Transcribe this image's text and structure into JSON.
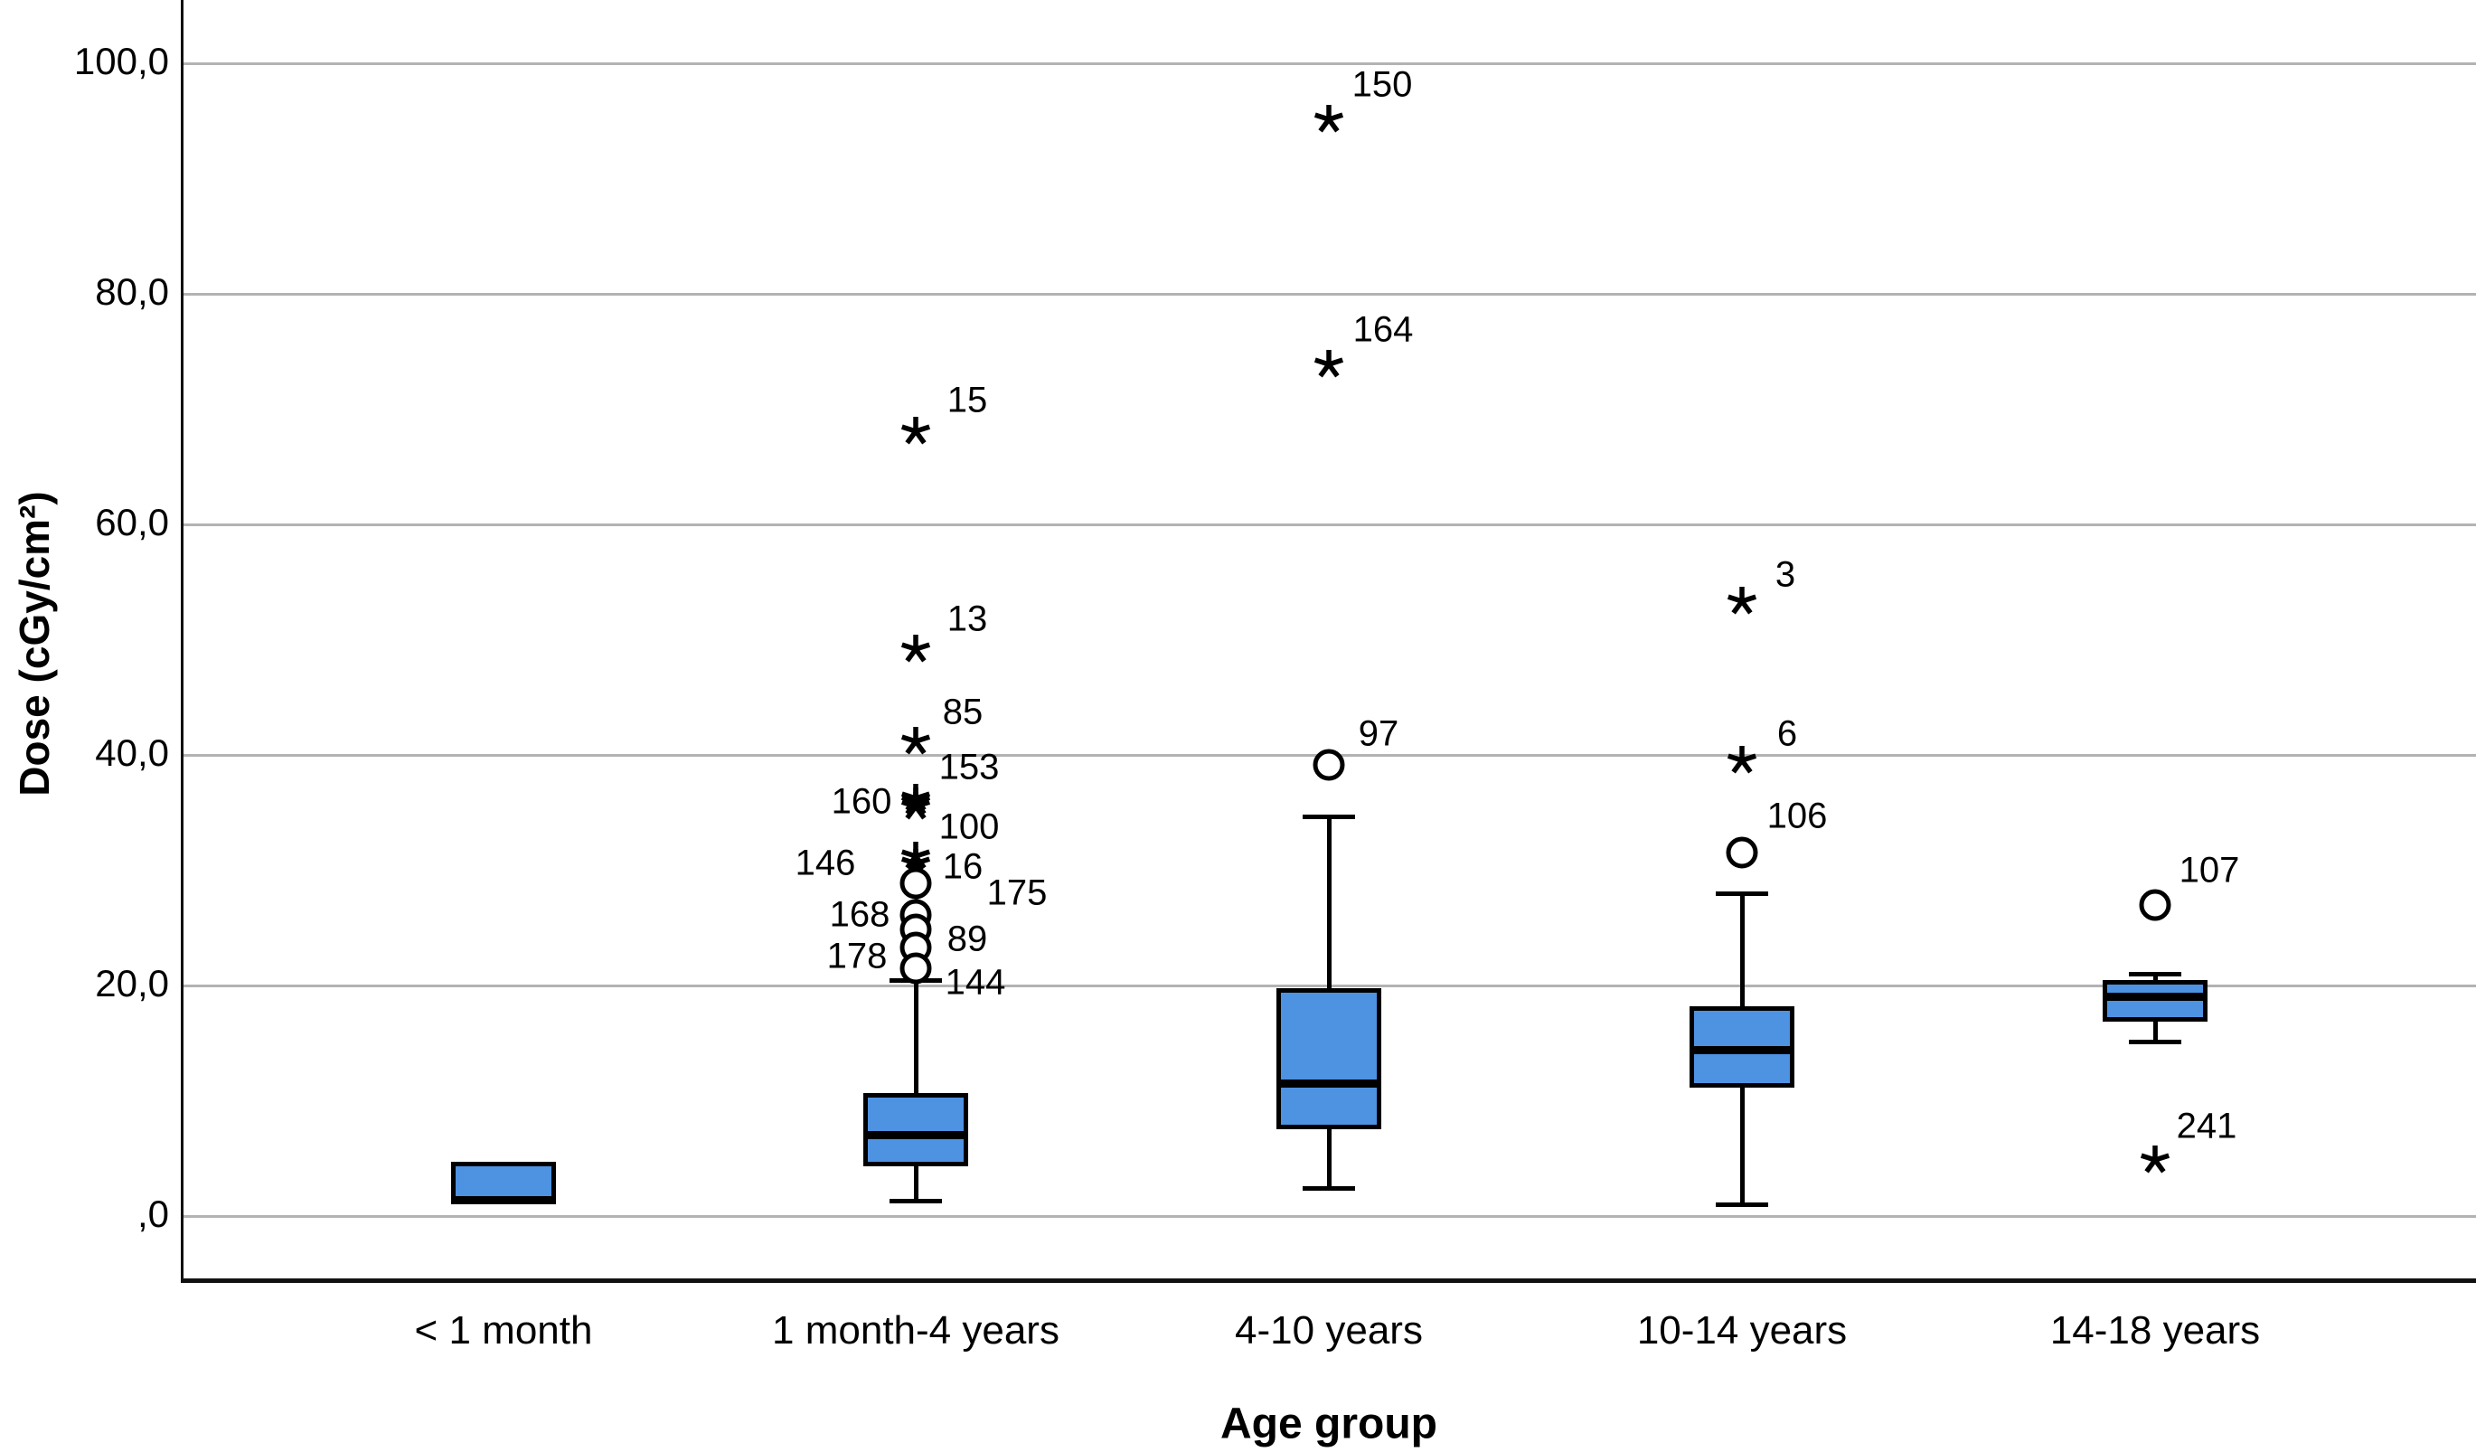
{
  "chart_data": {
    "type": "boxplot",
    "title": "",
    "ylabel": "Dose (cGy/cm²)",
    "xlabel": "Age group",
    "ylim": [
      -5.5,
      105.5
    ],
    "grid": true,
    "legend": "none",
    "box_fill_color": "#4e92e2",
    "gridline_color": "#b3b3b3",
    "line_color": "#000000",
    "yticks": [
      {
        "label": ",0",
        "value": 0
      },
      {
        "label": "20,0",
        "value": 20
      },
      {
        "label": "40,0",
        "value": 40
      },
      {
        "label": "60,0",
        "value": 60
      },
      {
        "label": "80,0",
        "value": 80
      },
      {
        "label": "100,0",
        "value": 100
      }
    ],
    "categories": [
      "< 1 month",
      "1 month-4 years",
      "4-10 years",
      "10-14 years",
      "14-18 years"
    ],
    "boxes": [
      {
        "category": "< 1 month",
        "q1": 1.0,
        "median": 1.4,
        "q3": 4.7,
        "whisker_low": null,
        "whisker_high": null,
        "outliers": []
      },
      {
        "category": "1 month-4 years",
        "q1": 4.3,
        "median": 7.0,
        "q3": 10.7,
        "whisker_low": 1.3,
        "whisker_high": 20.4,
        "outliers": [
          {
            "case": "15",
            "value": 68.1,
            "marker": "star",
            "label_offset": [
              35,
              -34
            ]
          },
          {
            "case": "13",
            "value": 49.2,
            "marker": "star",
            "label_offset": [
              35,
              -33
            ]
          },
          {
            "case": "85",
            "value": 41.2,
            "marker": "star",
            "label_offset": [
              30,
              -32
            ]
          },
          {
            "case": "153",
            "value": 36.2,
            "marker": "star",
            "label_offset": [
              37,
              -34
            ]
          },
          {
            "case": "160",
            "value": 35.9,
            "marker": "star",
            "label_offset": [
              -40,
              0
            ]
          },
          {
            "case": "100",
            "value": 35.5,
            "marker": "star",
            "label_offset": [
              37,
              23
            ]
          },
          {
            "case": "146",
            "value": 31.2,
            "marker": "star",
            "label_offset": [
              -80,
              8
            ]
          },
          {
            "case": "16",
            "value": 30.6,
            "marker": "star",
            "label_offset": [
              30,
              4
            ]
          },
          {
            "case": "175",
            "value": 28.9,
            "marker": "circle",
            "label_offset": [
              90,
              11
            ]
          },
          {
            "case": "168",
            "value": 26.1,
            "marker": "circle",
            "label_offset": [
              -42,
              0
            ]
          },
          {
            "case": "89",
            "value": 24.9,
            "marker": "circle",
            "label_offset": [
              35,
              11
            ]
          },
          {
            "case": "178",
            "value": 23.3,
            "marker": "circle",
            "label_offset": [
              -45,
              10
            ]
          },
          {
            "case": "144",
            "value": 21.5,
            "marker": "circle",
            "label_offset": [
              44,
              16
            ]
          }
        ]
      },
      {
        "category": "4-10 years",
        "q1": 7.5,
        "median": 11.5,
        "q3": 19.8,
        "whisker_low": 2.4,
        "whisker_high": 34.6,
        "outliers": [
          {
            "case": "150",
            "value": 95.1,
            "marker": "star",
            "label_offset": [
              37,
              -38
            ]
          },
          {
            "case": "164",
            "value": 73.9,
            "marker": "star",
            "label_offset": [
              38,
              -38
            ]
          },
          {
            "case": "97",
            "value": 39.1,
            "marker": "circle",
            "label_offset": [
              33,
              -34
            ]
          }
        ]
      },
      {
        "category": "10-14 years",
        "q1": 11.1,
        "median": 14.4,
        "q3": 18.2,
        "whisker_low": 1.0,
        "whisker_high": 28.0,
        "outliers": [
          {
            "case": "3",
            "value": 53.3,
            "marker": "star",
            "label_offset": [
              26,
              -29
            ]
          },
          {
            "case": "6",
            "value": 39.5,
            "marker": "star",
            "label_offset": [
              28,
              -29
            ]
          },
          {
            "case": "106",
            "value": 31.5,
            "marker": "circle",
            "label_offset": [
              39,
              -40
            ]
          }
        ]
      },
      {
        "category": "14-18 years",
        "q1": 16.9,
        "median": 19.0,
        "q3": 20.5,
        "whisker_low": 15.1,
        "whisker_high": 21.0,
        "outliers": [
          {
            "case": "107",
            "value": 27.0,
            "marker": "circle",
            "label_offset": [
              38,
              -38
            ]
          },
          {
            "case": "241",
            "value": 4.9,
            "marker": "star",
            "label_offset": [
              35,
              -37
            ]
          }
        ]
      }
    ]
  }
}
